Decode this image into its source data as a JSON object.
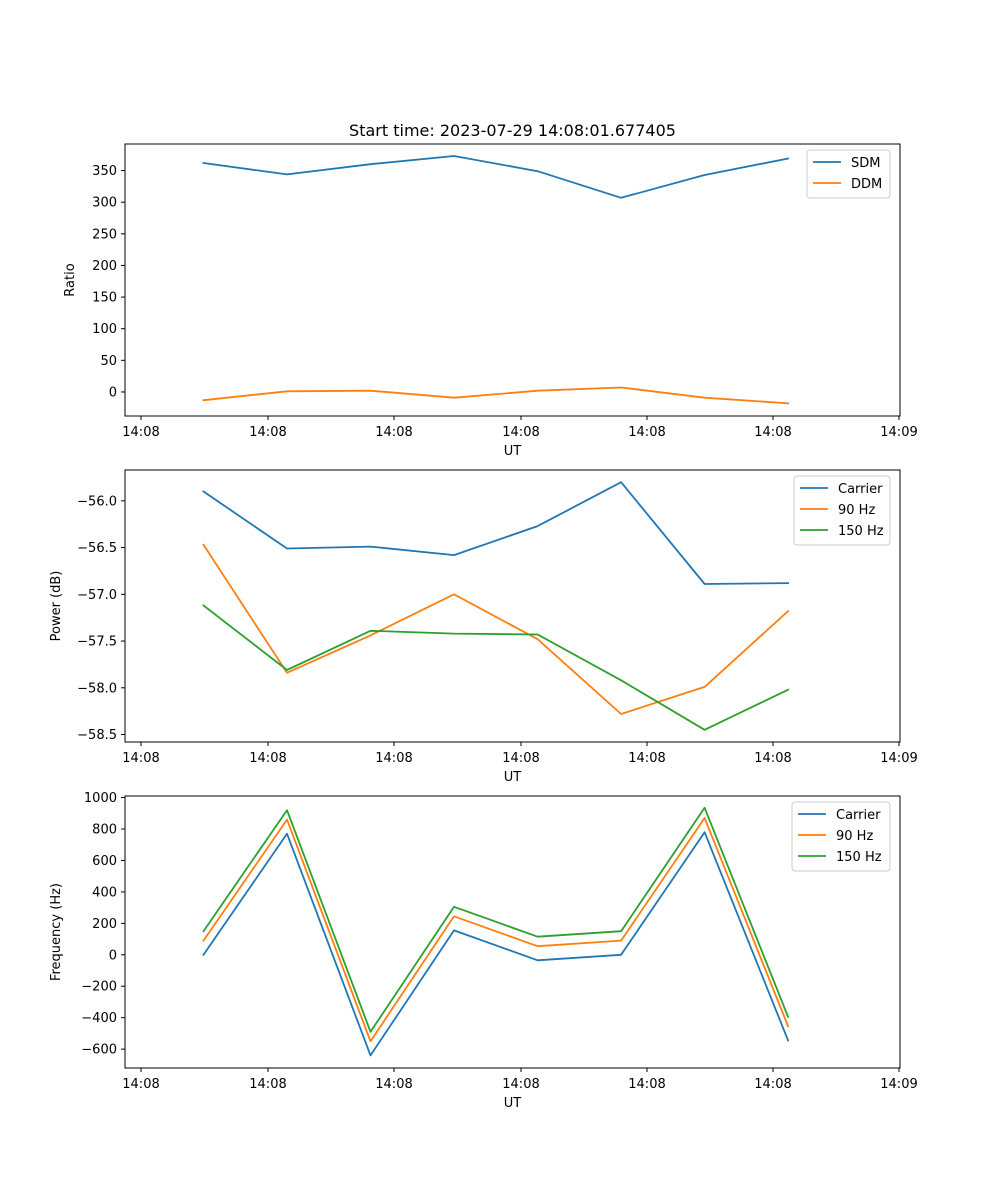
{
  "chart_data": [
    {
      "type": "line",
      "title": "Start time: 2023-07-29 14:08:01.677405",
      "xlabel": "UT",
      "ylabel": "Ratio",
      "x_tick_labels": [
        "14:08",
        "14:08",
        "14:08",
        "14:08",
        "14:08",
        "14:08",
        "14:09"
      ],
      "y_ticks": [
        0,
        50,
        100,
        150,
        200,
        250,
        300,
        350
      ],
      "y_tick_labels": [
        "0",
        "50",
        "100",
        "150",
        "200",
        "250",
        "300",
        "350"
      ],
      "ylim": [
        -38,
        392
      ],
      "xlim": [
        -0.94,
        8.34
      ],
      "x": [
        0,
        1,
        2,
        3,
        4,
        5,
        6,
        7
      ],
      "legend_loc": "top-right",
      "series": [
        {
          "name": "SDM",
          "color": "#1f77b4",
          "values": [
            362,
            344,
            360,
            373,
            349,
            307,
            343,
            369
          ]
        },
        {
          "name": "DDM",
          "color": "#ff7f0e",
          "values": [
            -13,
            1,
            2,
            -9,
            2,
            7,
            -9,
            -18
          ]
        }
      ]
    },
    {
      "type": "line",
      "title": "",
      "xlabel": "UT",
      "ylabel": "Power (dB)",
      "x_tick_labels": [
        "14:08",
        "14:08",
        "14:08",
        "14:08",
        "14:08",
        "14:08",
        "14:09"
      ],
      "y_ticks": [
        -58.5,
        -58.0,
        -57.5,
        -57.0,
        -56.5,
        -56.0
      ],
      "y_tick_labels": [
        "−58.5",
        "−58.0",
        "−57.5",
        "−57.0",
        "−56.5",
        "−56.0"
      ],
      "ylim": [
        -58.58,
        -55.67
      ],
      "xlim": [
        -0.94,
        8.34
      ],
      "x": [
        0,
        1,
        2,
        3,
        4,
        5,
        6,
        7
      ],
      "legend_loc": "top-right",
      "series": [
        {
          "name": "Carrier",
          "color": "#1f77b4",
          "values": [
            -55.9,
            -56.51,
            -56.49,
            -56.58,
            -56.27,
            -55.8,
            -56.89,
            -56.88
          ]
        },
        {
          "name": "90 Hz",
          "color": "#ff7f0e",
          "values": [
            -56.47,
            -57.84,
            -57.44,
            -57.0,
            -57.48,
            -58.28,
            -57.99,
            -57.18
          ]
        },
        {
          "name": "150 Hz",
          "color": "#2ca02c",
          "values": [
            -57.12,
            -57.81,
            -57.39,
            -57.42,
            -57.43,
            -57.92,
            -58.45,
            -58.02
          ]
        }
      ]
    },
    {
      "type": "line",
      "title": "",
      "xlabel": "UT",
      "ylabel": "Frequency (Hz)",
      "x_tick_labels": [
        "14:08",
        "14:08",
        "14:08",
        "14:08",
        "14:08",
        "14:08",
        "14:09"
      ],
      "y_ticks": [
        -600,
        -400,
        -200,
        0,
        200,
        400,
        600,
        800,
        1000
      ],
      "y_tick_labels": [
        "−600",
        "−400",
        "−200",
        "0",
        "200",
        "400",
        "600",
        "800",
        "1000"
      ],
      "ylim": [
        -720,
        1010
      ],
      "xlim": [
        -0.94,
        8.34
      ],
      "x": [
        0,
        1,
        2,
        3,
        4,
        5,
        6,
        7
      ],
      "legend_loc": "top-right",
      "series": [
        {
          "name": "Carrier",
          "color": "#1f77b4",
          "values": [
            0,
            770,
            -640,
            155,
            -35,
            0,
            780,
            -545
          ]
        },
        {
          "name": "90 Hz",
          "color": "#ff7f0e",
          "values": [
            90,
            860,
            -550,
            245,
            55,
            90,
            870,
            -455
          ]
        },
        {
          "name": "150 Hz",
          "color": "#2ca02c",
          "values": [
            150,
            920,
            -490,
            305,
            115,
            150,
            935,
            -395
          ]
        }
      ]
    }
  ]
}
